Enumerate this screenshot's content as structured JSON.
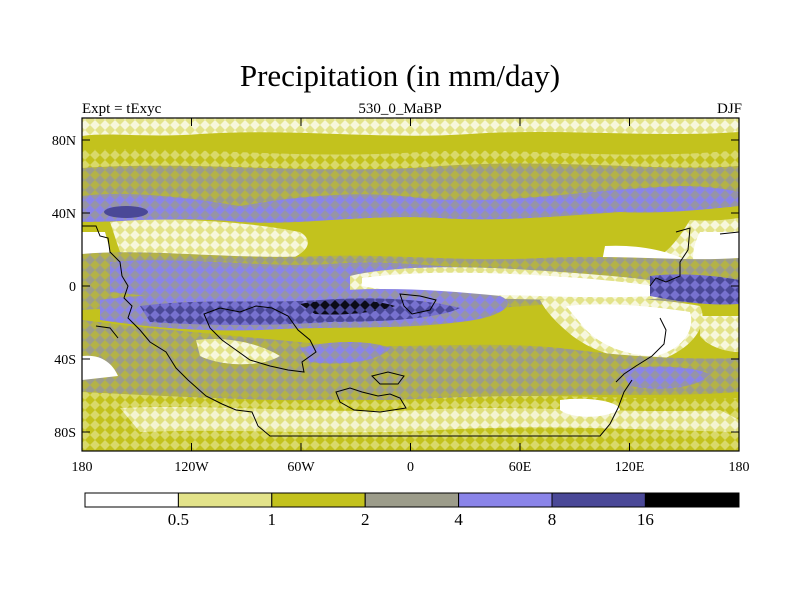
{
  "title": "Precipitation (in mm/day)",
  "left_string": "Expt = tExyc",
  "center_string": "530_0_MaBP",
  "right_string": "DJF",
  "map": {
    "variable": "precipitation",
    "units": "mm/day",
    "season": "DJF",
    "lon_range": [
      -180,
      180
    ],
    "lat_range": [
      -90,
      90
    ],
    "lat_ticks": [
      "80N",
      "40N",
      "0",
      "40S",
      "80S"
    ],
    "lon_ticks": [
      "180",
      "120W",
      "60W",
      "0",
      "60E",
      "120E",
      "180"
    ]
  },
  "colorbar": {
    "levels": [
      "0.5",
      "1",
      "2",
      "4",
      "8",
      "16"
    ],
    "colors": [
      "#ffffff",
      "#e3e38a",
      "#c3c21d",
      "#9c9c8a",
      "#8a84e8",
      "#4a4897",
      "#000000"
    ]
  }
}
